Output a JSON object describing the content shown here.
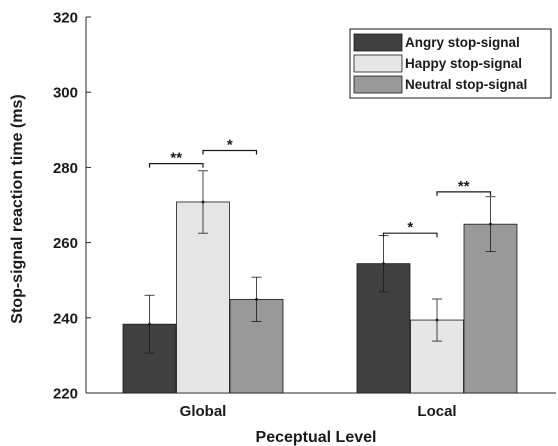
{
  "chart_data": {
    "type": "bar",
    "xlabel": "Peceptual Level",
    "ylabel": "Stop-signal reaction time (ms)",
    "ylim": [
      220,
      320
    ],
    "yticks": [
      220,
      240,
      260,
      280,
      300,
      320
    ],
    "categories": [
      "Global",
      "Local"
    ],
    "grid": false,
    "legend_position": "top-right",
    "series": [
      {
        "name": "Angry stop-signal",
        "color": "#404040",
        "values": [
          238.3,
          254.4
        ],
        "error": [
          7.7,
          7.5
        ]
      },
      {
        "name": "Happy stop-signal",
        "color": "#e6e6e6",
        "values": [
          270.8,
          239.4
        ],
        "error": [
          8.3,
          5.6
        ]
      },
      {
        "name": "Neutral stop-signal",
        "color": "#999999",
        "values": [
          244.9,
          264.9
        ],
        "error": [
          5.9,
          7.3
        ]
      }
    ],
    "annotations": [
      {
        "text": "**",
        "category": 0,
        "from_series": 0,
        "to_series": 1,
        "y": 281
      },
      {
        "text": "*",
        "category": 0,
        "from_series": 1,
        "to_series": 2,
        "y": 284.5
      },
      {
        "text": "*",
        "category": 1,
        "from_series": 0,
        "to_series": 1,
        "y": 262.5
      },
      {
        "text": "**",
        "category": 1,
        "from_series": 1,
        "to_series": 2,
        "y": 273.5
      }
    ]
  }
}
